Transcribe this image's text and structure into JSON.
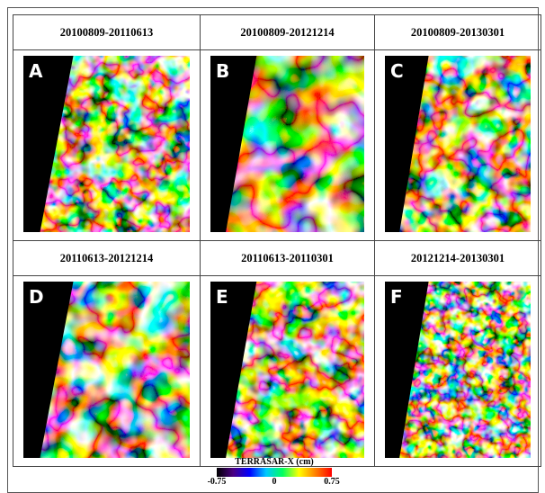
{
  "panels": [
    {
      "title": "20100809-20110613",
      "label": "A"
    },
    {
      "title": "20100809-20121214",
      "label": "B"
    },
    {
      "title": "20100809-20130301",
      "label": "C"
    },
    {
      "title": "20110613-20121214",
      "label": "D"
    },
    {
      "title": "20110613-20110301",
      "label": "E"
    },
    {
      "title": "20121214-20130301",
      "label": "F"
    }
  ],
  "colorbar": {
    "title": "TERRASAR-X (cm)",
    "ticks": [
      "-0.75",
      "0",
      "0.75"
    ]
  }
}
